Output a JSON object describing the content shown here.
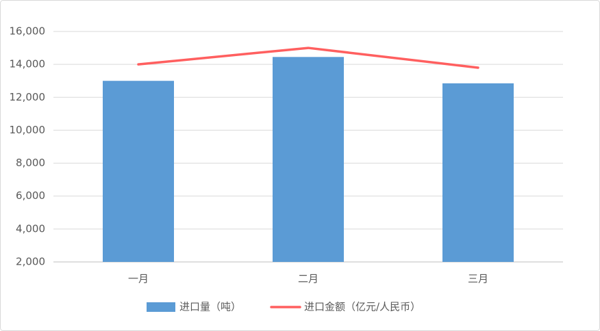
{
  "chart_data": {
    "type": "combo",
    "categories": [
      "一月",
      "二月",
      "三月"
    ],
    "series": [
      {
        "name": "进口量（吨）",
        "type": "bar",
        "color": "#5b9bd5",
        "values": [
          13000,
          14450,
          12850
        ]
      },
      {
        "name": "进口金额（亿元/人民币）",
        "type": "line",
        "color": "#ff5f5f",
        "values": [
          14000,
          15000,
          13800
        ]
      }
    ],
    "ylim": [
      2000,
      16000
    ],
    "yticks": [
      {
        "value": 2000,
        "label": "2,000"
      },
      {
        "value": 4000,
        "label": "4,000"
      },
      {
        "value": 6000,
        "label": "6,000"
      },
      {
        "value": 8000,
        "label": "8,000"
      },
      {
        "value": 10000,
        "label": "10,000"
      },
      {
        "value": 12000,
        "label": "12,000"
      },
      {
        "value": 14000,
        "label": "14,000"
      },
      {
        "value": 16000,
        "label": "16,000"
      }
    ],
    "grid": true,
    "legend": "bottom"
  }
}
